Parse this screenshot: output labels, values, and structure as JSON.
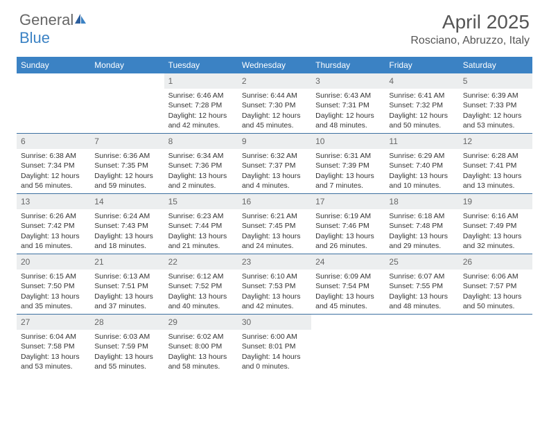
{
  "logo": {
    "part1": "General",
    "part2": "Blue"
  },
  "title": "April 2025",
  "location": "Rosciano, Abruzzo, Italy",
  "colors": {
    "header_bg": "#3b82c4",
    "header_text": "#ffffff",
    "daynum_bg": "#eceeef",
    "border": "#3b6fa0"
  },
  "weekdays": [
    "Sunday",
    "Monday",
    "Tuesday",
    "Wednesday",
    "Thursday",
    "Friday",
    "Saturday"
  ],
  "weeks": [
    [
      {
        "empty": true
      },
      {
        "empty": true
      },
      {
        "num": "1",
        "sunrise": "Sunrise: 6:46 AM",
        "sunset": "Sunset: 7:28 PM",
        "daylight": "Daylight: 12 hours and 42 minutes."
      },
      {
        "num": "2",
        "sunrise": "Sunrise: 6:44 AM",
        "sunset": "Sunset: 7:30 PM",
        "daylight": "Daylight: 12 hours and 45 minutes."
      },
      {
        "num": "3",
        "sunrise": "Sunrise: 6:43 AM",
        "sunset": "Sunset: 7:31 PM",
        "daylight": "Daylight: 12 hours and 48 minutes."
      },
      {
        "num": "4",
        "sunrise": "Sunrise: 6:41 AM",
        "sunset": "Sunset: 7:32 PM",
        "daylight": "Daylight: 12 hours and 50 minutes."
      },
      {
        "num": "5",
        "sunrise": "Sunrise: 6:39 AM",
        "sunset": "Sunset: 7:33 PM",
        "daylight": "Daylight: 12 hours and 53 minutes."
      }
    ],
    [
      {
        "num": "6",
        "sunrise": "Sunrise: 6:38 AM",
        "sunset": "Sunset: 7:34 PM",
        "daylight": "Daylight: 12 hours and 56 minutes."
      },
      {
        "num": "7",
        "sunrise": "Sunrise: 6:36 AM",
        "sunset": "Sunset: 7:35 PM",
        "daylight": "Daylight: 12 hours and 59 minutes."
      },
      {
        "num": "8",
        "sunrise": "Sunrise: 6:34 AM",
        "sunset": "Sunset: 7:36 PM",
        "daylight": "Daylight: 13 hours and 2 minutes."
      },
      {
        "num": "9",
        "sunrise": "Sunrise: 6:32 AM",
        "sunset": "Sunset: 7:37 PM",
        "daylight": "Daylight: 13 hours and 4 minutes."
      },
      {
        "num": "10",
        "sunrise": "Sunrise: 6:31 AM",
        "sunset": "Sunset: 7:39 PM",
        "daylight": "Daylight: 13 hours and 7 minutes."
      },
      {
        "num": "11",
        "sunrise": "Sunrise: 6:29 AM",
        "sunset": "Sunset: 7:40 PM",
        "daylight": "Daylight: 13 hours and 10 minutes."
      },
      {
        "num": "12",
        "sunrise": "Sunrise: 6:28 AM",
        "sunset": "Sunset: 7:41 PM",
        "daylight": "Daylight: 13 hours and 13 minutes."
      }
    ],
    [
      {
        "num": "13",
        "sunrise": "Sunrise: 6:26 AM",
        "sunset": "Sunset: 7:42 PM",
        "daylight": "Daylight: 13 hours and 16 minutes."
      },
      {
        "num": "14",
        "sunrise": "Sunrise: 6:24 AM",
        "sunset": "Sunset: 7:43 PM",
        "daylight": "Daylight: 13 hours and 18 minutes."
      },
      {
        "num": "15",
        "sunrise": "Sunrise: 6:23 AM",
        "sunset": "Sunset: 7:44 PM",
        "daylight": "Daylight: 13 hours and 21 minutes."
      },
      {
        "num": "16",
        "sunrise": "Sunrise: 6:21 AM",
        "sunset": "Sunset: 7:45 PM",
        "daylight": "Daylight: 13 hours and 24 minutes."
      },
      {
        "num": "17",
        "sunrise": "Sunrise: 6:19 AM",
        "sunset": "Sunset: 7:46 PM",
        "daylight": "Daylight: 13 hours and 26 minutes."
      },
      {
        "num": "18",
        "sunrise": "Sunrise: 6:18 AM",
        "sunset": "Sunset: 7:48 PM",
        "daylight": "Daylight: 13 hours and 29 minutes."
      },
      {
        "num": "19",
        "sunrise": "Sunrise: 6:16 AM",
        "sunset": "Sunset: 7:49 PM",
        "daylight": "Daylight: 13 hours and 32 minutes."
      }
    ],
    [
      {
        "num": "20",
        "sunrise": "Sunrise: 6:15 AM",
        "sunset": "Sunset: 7:50 PM",
        "daylight": "Daylight: 13 hours and 35 minutes."
      },
      {
        "num": "21",
        "sunrise": "Sunrise: 6:13 AM",
        "sunset": "Sunset: 7:51 PM",
        "daylight": "Daylight: 13 hours and 37 minutes."
      },
      {
        "num": "22",
        "sunrise": "Sunrise: 6:12 AM",
        "sunset": "Sunset: 7:52 PM",
        "daylight": "Daylight: 13 hours and 40 minutes."
      },
      {
        "num": "23",
        "sunrise": "Sunrise: 6:10 AM",
        "sunset": "Sunset: 7:53 PM",
        "daylight": "Daylight: 13 hours and 42 minutes."
      },
      {
        "num": "24",
        "sunrise": "Sunrise: 6:09 AM",
        "sunset": "Sunset: 7:54 PM",
        "daylight": "Daylight: 13 hours and 45 minutes."
      },
      {
        "num": "25",
        "sunrise": "Sunrise: 6:07 AM",
        "sunset": "Sunset: 7:55 PM",
        "daylight": "Daylight: 13 hours and 48 minutes."
      },
      {
        "num": "26",
        "sunrise": "Sunrise: 6:06 AM",
        "sunset": "Sunset: 7:57 PM",
        "daylight": "Daylight: 13 hours and 50 minutes."
      }
    ],
    [
      {
        "num": "27",
        "sunrise": "Sunrise: 6:04 AM",
        "sunset": "Sunset: 7:58 PM",
        "daylight": "Daylight: 13 hours and 53 minutes."
      },
      {
        "num": "28",
        "sunrise": "Sunrise: 6:03 AM",
        "sunset": "Sunset: 7:59 PM",
        "daylight": "Daylight: 13 hours and 55 minutes."
      },
      {
        "num": "29",
        "sunrise": "Sunrise: 6:02 AM",
        "sunset": "Sunset: 8:00 PM",
        "daylight": "Daylight: 13 hours and 58 minutes."
      },
      {
        "num": "30",
        "sunrise": "Sunrise: 6:00 AM",
        "sunset": "Sunset: 8:01 PM",
        "daylight": "Daylight: 14 hours and 0 minutes."
      },
      {
        "empty": true
      },
      {
        "empty": true
      },
      {
        "empty": true
      }
    ]
  ]
}
